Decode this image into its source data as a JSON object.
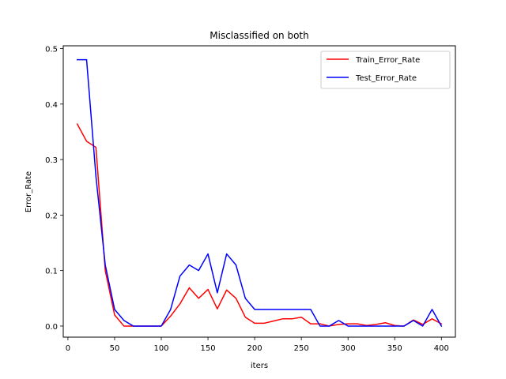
{
  "chart_data": {
    "type": "line",
    "title": "Misclassified on both",
    "xlabel": "iters",
    "ylabel": "Error_Rate",
    "xlim": [
      -5,
      415
    ],
    "ylim": [
      -0.02,
      0.505
    ],
    "xticks": [
      0,
      50,
      100,
      150,
      200,
      250,
      300,
      350,
      400
    ],
    "yticks": [
      0.0,
      0.1,
      0.2,
      0.3,
      0.4,
      0.5
    ],
    "xtick_labels": [
      "0",
      "50",
      "100",
      "150",
      "200",
      "250",
      "300",
      "350",
      "400"
    ],
    "ytick_labels": [
      "0.0",
      "0.1",
      "0.2",
      "0.3",
      "0.4",
      "0.5"
    ],
    "grid": false,
    "legend_position": "upper right",
    "x": [
      10,
      20,
      30,
      40,
      50,
      60,
      70,
      80,
      90,
      100,
      110,
      120,
      130,
      140,
      150,
      160,
      170,
      180,
      190,
      200,
      210,
      220,
      230,
      240,
      250,
      260,
      270,
      280,
      290,
      300,
      310,
      320,
      330,
      340,
      350,
      360,
      370,
      380,
      390,
      400
    ],
    "series": [
      {
        "name": "Train_Error_Rate",
        "color": "#ff0000",
        "values": [
          0.364,
          0.333,
          0.322,
          0.1,
          0.02,
          0.0,
          0.0,
          0.0,
          0.0,
          0.0,
          0.018,
          0.04,
          0.069,
          0.05,
          0.066,
          0.031,
          0.065,
          0.05,
          0.016,
          0.005,
          0.005,
          0.009,
          0.013,
          0.013,
          0.016,
          0.004,
          0.004,
          0.0,
          0.003,
          0.004,
          0.004,
          0.001,
          0.003,
          0.006,
          0.001,
          0.0,
          0.011,
          0.003,
          0.013,
          0.004
        ]
      },
      {
        "name": "Test_Error_Rate",
        "color": "#0000ff",
        "values": [
          0.48,
          0.48,
          0.27,
          0.11,
          0.03,
          0.01,
          0.0,
          0.0,
          0.0,
          0.0,
          0.03,
          0.09,
          0.11,
          0.1,
          0.13,
          0.06,
          0.13,
          0.11,
          0.05,
          0.03,
          0.03,
          0.03,
          0.03,
          0.03,
          0.03,
          0.03,
          0.0,
          0.0,
          0.01,
          0.0,
          0.0,
          0.0,
          0.0,
          0.0,
          0.0,
          0.0,
          0.01,
          0.0,
          0.03,
          0.0
        ]
      }
    ]
  }
}
